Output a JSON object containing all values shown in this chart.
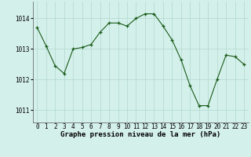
{
  "hours": [
    0,
    1,
    2,
    3,
    4,
    5,
    6,
    7,
    8,
    9,
    10,
    11,
    12,
    13,
    14,
    15,
    16,
    17,
    18,
    19,
    20,
    21,
    22,
    23
  ],
  "pressure": [
    1013.7,
    1013.1,
    1012.45,
    1012.2,
    1013.0,
    1013.05,
    1013.15,
    1013.55,
    1013.85,
    1013.85,
    1013.75,
    1014.0,
    1014.15,
    1014.15,
    1013.75,
    1013.3,
    1012.65,
    1011.8,
    1011.15,
    1011.15,
    1012.0,
    1012.8,
    1012.75,
    1012.5
  ],
  "bg_color": "#d4f0eb",
  "grid_color": "#b0d8cc",
  "line_color": "#1a5c1a",
  "marker_color": "#1a5c1a",
  "xlabel": "Graphe pression niveau de la mer (hPa)",
  "ylim": [
    1010.6,
    1014.55
  ],
  "yticks": [
    1011,
    1012,
    1013,
    1014
  ],
  "xtick_fontsize": 5.5,
  "ytick_fontsize": 5.5,
  "xlabel_fontsize": 6.5
}
